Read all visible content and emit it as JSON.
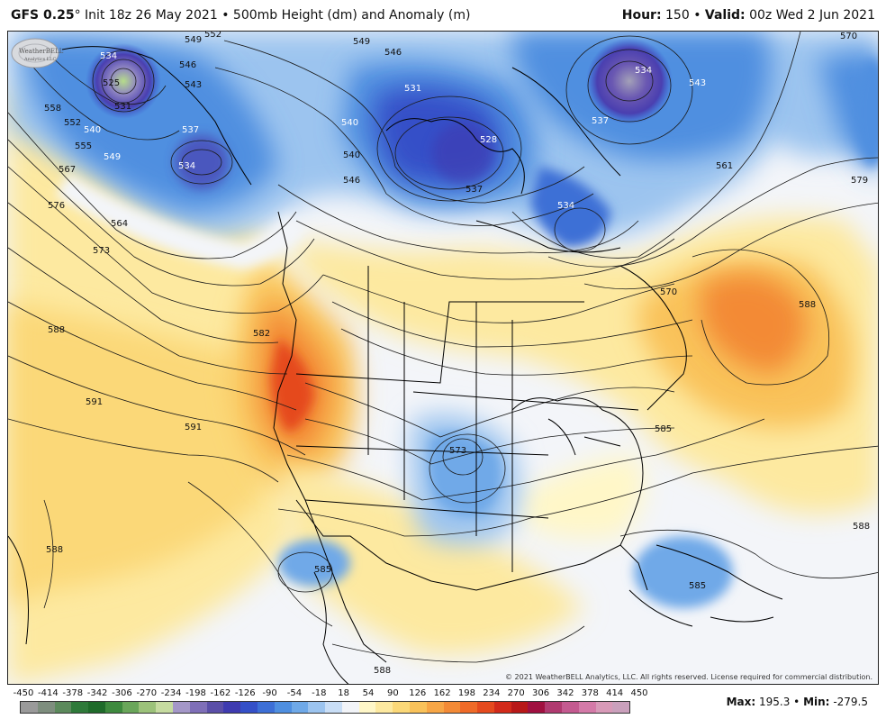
{
  "header": {
    "model": "GFS 0.25",
    "degree": "°",
    "init": "Init 18z 26 May 2021",
    "sep": "•",
    "product": "500mb Height (dm) and Anomaly (m)",
    "hour_label": "Hour:",
    "hour_value": "150",
    "valid_label": "Valid:",
    "valid_value": "00z Wed 2 Jun 2021"
  },
  "contour_labels": [
    "549",
    "552",
    "549",
    "546",
    "570",
    "534",
    "525",
    "531",
    "546",
    "543",
    "537",
    "540",
    "534",
    "531",
    "528",
    "558",
    "552",
    "555",
    "540",
    "549",
    "537",
    "534",
    "537",
    "543",
    "540",
    "567",
    "546",
    "561",
    "579",
    "576",
    "564",
    "534",
    "573",
    "570",
    "588",
    "582",
    "588",
    "591",
    "591",
    "585",
    "573",
    "585",
    "588",
    "585",
    "588"
  ],
  "copyright": "© 2021 WeatherBELL Analytics, LLC. All rights reserved. License required for commercial distribution.",
  "logo": {
    "name": "WeatherBELL",
    "sub": "Analytics LLC"
  },
  "scale": {
    "ticks": [
      "-450",
      "-414",
      "-378",
      "-342",
      "-306",
      "-270",
      "-234",
      "-198",
      "-162",
      "-126",
      "-90",
      "-54",
      "-18",
      "18",
      "54",
      "90",
      "126",
      "162",
      "198",
      "234",
      "270",
      "306",
      "342",
      "378",
      "414",
      "450"
    ],
    "colors": [
      "#9a9a9a",
      "#7e8e7e",
      "#5c8a5c",
      "#2f7a3a",
      "#1f6b2a",
      "#3e8a3e",
      "#6aa65a",
      "#9cc27a",
      "#c6dba0",
      "#a497c8",
      "#7f6fb8",
      "#5b4fa8",
      "#3f3bb0",
      "#3450c8",
      "#3d6fd6",
      "#4f8fe0",
      "#6fa9e8",
      "#9cc4ef",
      "#c9def6",
      "#f2f4f8",
      "#fff7c8",
      "#fde9a0",
      "#fbd878",
      "#f9c25a",
      "#f7a646",
      "#f38a36",
      "#ef6a28",
      "#e54a1e",
      "#d22a1a",
      "#b81818",
      "#a01040",
      "#b03a70",
      "#c45a90",
      "#d47aa8",
      "#d89ab8",
      "#caa0bc"
    ],
    "max_label": "Max:",
    "max_value": "195.3",
    "sep": "•",
    "min_label": "Min:",
    "min_value": "-279.5"
  }
}
